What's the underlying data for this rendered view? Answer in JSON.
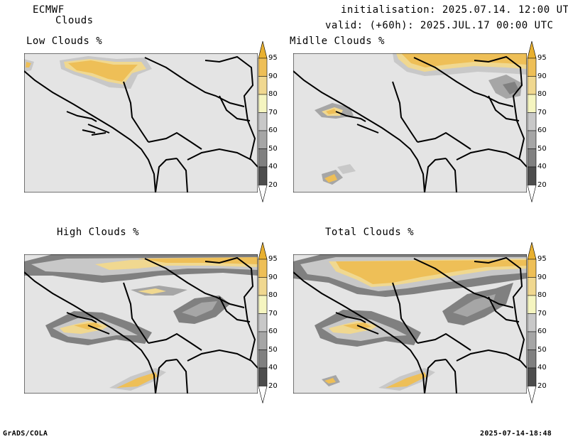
{
  "header": {
    "model": "ECMWF",
    "product": "Clouds",
    "initialisation": "initialisation: 2025.07.14. 12:00 UTC",
    "valid": "valid: (+60h): 2025.JUL.17 00:00 UTC"
  },
  "panels": [
    {
      "id": "low",
      "title": "Low Clouds %"
    },
    {
      "id": "middle",
      "title": "Midlle Clouds %"
    },
    {
      "id": "high",
      "title": "High Clouds %"
    },
    {
      "id": "total",
      "title": "Total Clouds %"
    }
  ],
  "colorbar": {
    "levels": [
      20,
      40,
      50,
      60,
      70,
      80,
      90,
      95
    ],
    "level_labels": [
      "20",
      "40",
      "50",
      "60",
      "70",
      "80",
      "90",
      "95"
    ],
    "colors": {
      "below_20": "#ffffff",
      "20_40": "#4d4d4d",
      "40_50": "#808080",
      "50_60": "#a6a6a6",
      "60_70": "#c8c8c8",
      "70_80": "#f5f5c0",
      "80_90": "#f0d890",
      "90_95": "#eebf57",
      "above_95": "#e8b030"
    },
    "map_background": "#e4e4e4"
  },
  "footer": {
    "left": "GrADS/COLA",
    "right": "2025-07-14-18:48"
  }
}
